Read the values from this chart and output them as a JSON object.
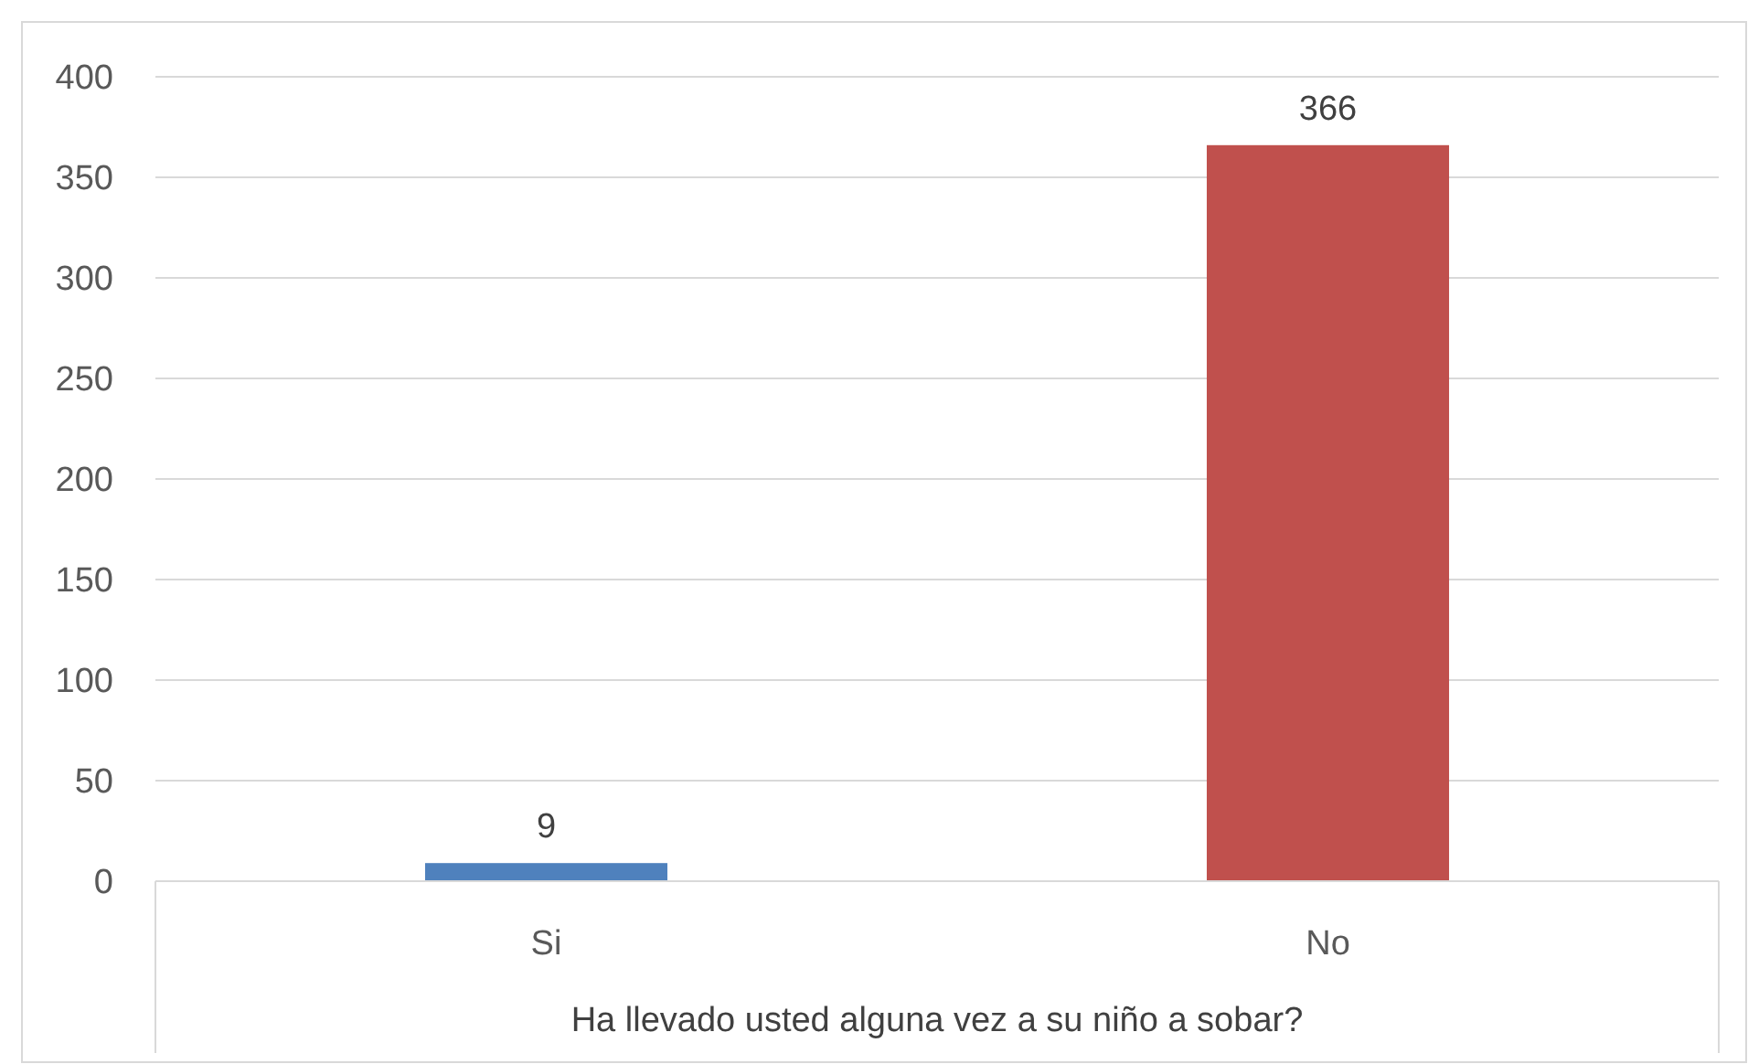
{
  "chart_data": {
    "type": "bar",
    "xlabel": "Ha llevado usted alguna vez a su niño a sobar?",
    "categories": [
      "Si",
      "No"
    ],
    "values": [
      9,
      366
    ],
    "colors": [
      "#4f81bd",
      "#c0504d"
    ],
    "ylim": [
      0,
      400
    ],
    "yticks": [
      0,
      50,
      100,
      150,
      200,
      250,
      300,
      350,
      400
    ],
    "grid": "y",
    "data_labels": true
  }
}
